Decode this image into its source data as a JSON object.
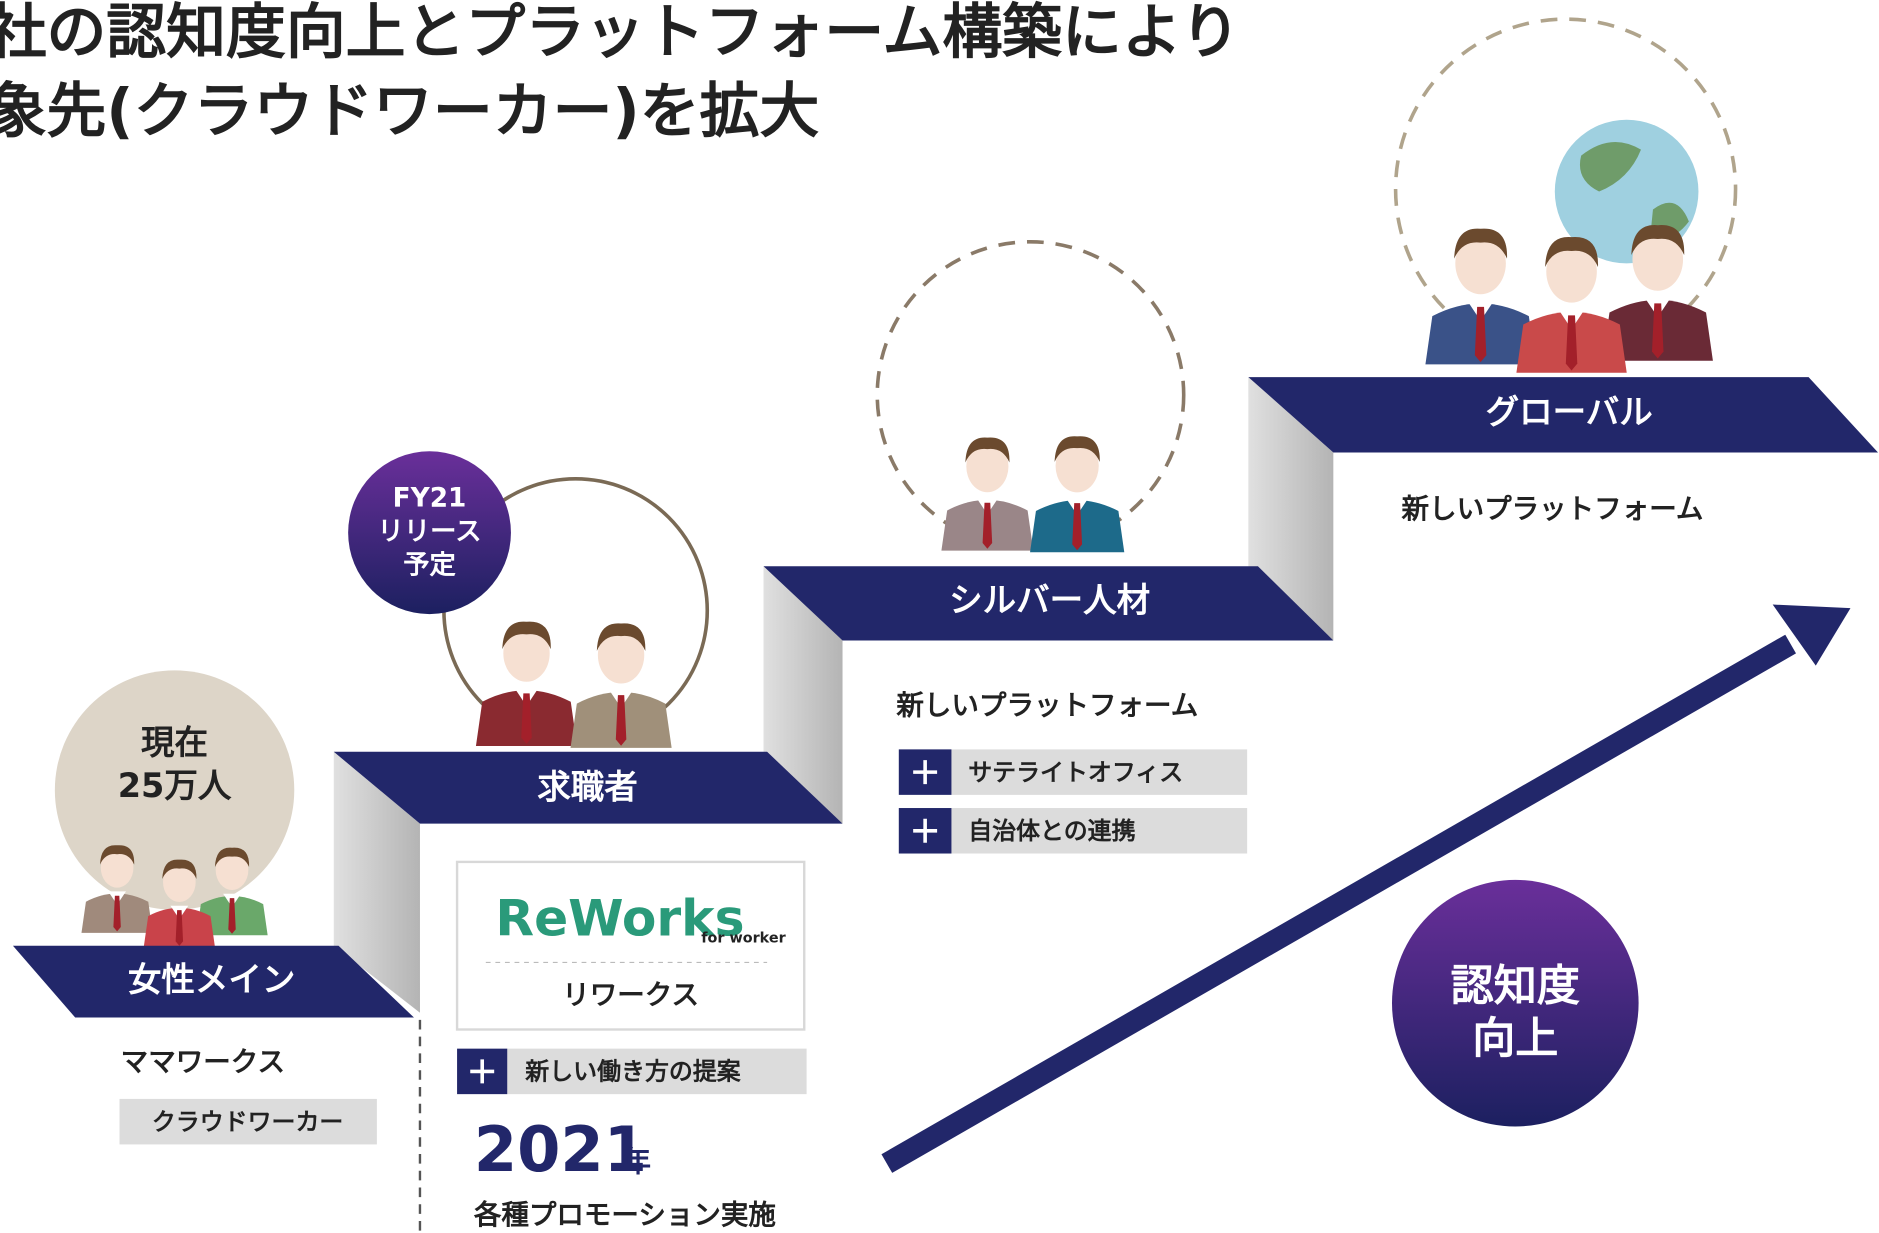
{
  "header": {
    "lines": [
      "社の認知度向上とプラットフォーム構築により",
      "象先(クラウドワーカー)を拡大"
    ]
  },
  "steps": [
    {
      "label": "女性メイン",
      "badge": [
        "現在",
        "25万人"
      ],
      "service": "ママワークス",
      "tags": [
        "クラウドワーカー"
      ]
    },
    {
      "label": "求職者",
      "badge": [
        "FY21",
        "リリース",
        "予定"
      ],
      "logo": {
        "name": "ReWorks",
        "sub": "for worker",
        "caption": "リワークス"
      },
      "tags": [
        "新しい働き方の提案"
      ],
      "year": {
        "number": "2021",
        "unit": "年"
      },
      "note": "各種プロモーション実施"
    },
    {
      "label": "シルバー人材",
      "service": "新しいプラットフォーム",
      "tags": [
        "サテライトオフィス",
        "自治体との連携"
      ]
    },
    {
      "label": "グローバル",
      "service": "新しいプラットフォーム"
    }
  ],
  "goal": [
    "認知度",
    "向上"
  ]
}
